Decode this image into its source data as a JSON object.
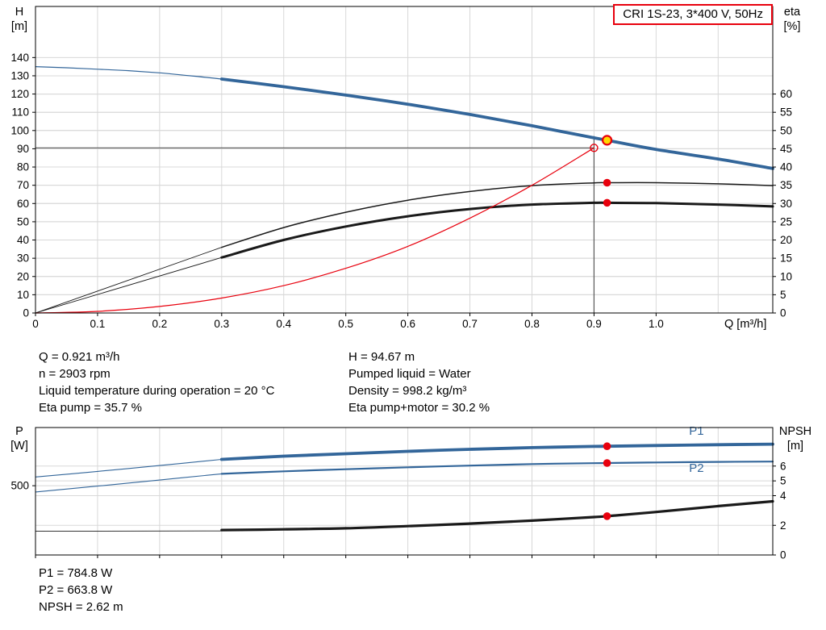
{
  "title_box": {
    "label": "CRI 1S-23, 3*400 V, 50Hz",
    "border_color": "#e8000d"
  },
  "operating_point_info": {
    "left": [
      "Q = 0.921 m³/h",
      "n = 2903 rpm",
      "Liquid temperature during operation = 20 °C",
      "Eta pump = 35.7 %"
    ],
    "right": [
      "H = 94.67 m",
      "Pumped liquid = Water",
      "Density = 998.2 kg/m³",
      "Eta pump+motor = 30.2 %"
    ]
  },
  "power_info": [
    "P1 = 784.8 W",
    "P2 = 663.8 W",
    "NPSH = 2.62 m"
  ],
  "colors": {
    "curve_blue": "#33669a",
    "curve_black": "#1a1a1a",
    "curve_red": "#e8000d",
    "marker_red": "#e8000d",
    "marker_yellow": "#ffd800",
    "grid": "#d8d8d8",
    "crosshair": "#595959"
  },
  "chart_data": [
    {
      "type": "line",
      "name": "hq-eta-chart",
      "title": "CRI 1S-23, 3*400 V, 50Hz",
      "left_axis": {
        "label": "H",
        "unit": "[m]",
        "min": 0,
        "max": 168,
        "tick_values": [
          0,
          10,
          20,
          30,
          40,
          50,
          60,
          70,
          80,
          90,
          100,
          110,
          120,
          130,
          140
        ],
        "tick_labels": [
          "0",
          "10",
          "20",
          "30",
          "40",
          "50",
          "60",
          "70",
          "80",
          "90",
          "100",
          "110",
          "120",
          "130",
          "140"
        ]
      },
      "right_axis": {
        "label": "eta",
        "unit": "[%]",
        "min": 0,
        "max": 84,
        "tick_values": [
          0,
          5,
          10,
          15,
          20,
          25,
          30,
          35,
          40,
          45,
          50,
          55,
          60
        ],
        "tick_labels": [
          "0",
          "5",
          "10",
          "15",
          "20",
          "25",
          "30",
          "35",
          "40",
          "45",
          "50",
          "55",
          "60"
        ]
      },
      "x_axis": {
        "label": "Q [m³/h]",
        "min": 0,
        "max": 1.188,
        "grid_step": 0.1,
        "tick_values": [
          0,
          0.1,
          0.2,
          0.3,
          0.4,
          0.5,
          0.6,
          0.7,
          0.8,
          0.9,
          1.0
        ],
        "tick_labels": [
          "0",
          "0.1",
          "0.2",
          "0.3",
          "0.4",
          "0.5",
          "0.6",
          "0.7",
          "0.8",
          "0.9",
          "1.0"
        ]
      },
      "crosshair": {
        "q": 0.9,
        "h": 90.5,
        "h_top": 97
      },
      "series": [
        {
          "name": "pump-curve-lead",
          "axis": "left",
          "color": "#33669a",
          "width": 1.2,
          "points": [
            [
              0,
              135
            ],
            [
              0.05,
              134.4
            ],
            [
              0.1,
              133.6
            ],
            [
              0.15,
              132.8
            ],
            [
              0.2,
              131.6
            ],
            [
              0.25,
              130
            ],
            [
              0.3,
              128.2
            ]
          ]
        },
        {
          "name": "pump-curve",
          "axis": "left",
          "color": "#33669a",
          "width": 3.8,
          "points": [
            [
              0.3,
              128.2
            ],
            [
              0.4,
              124
            ],
            [
              0.5,
              119.4
            ],
            [
              0.6,
              114.4
            ],
            [
              0.7,
              108.8
            ],
            [
              0.8,
              102.6
            ],
            [
              0.9,
              96
            ],
            [
              0.921,
              94.67
            ],
            [
              1.0,
              89.6
            ],
            [
              1.1,
              84.4
            ],
            [
              1.188,
              79.2
            ]
          ]
        },
        {
          "name": "eta-pump-lead",
          "axis": "right",
          "color": "#1a1a1a",
          "width": 0.9,
          "points": [
            [
              0,
              0
            ],
            [
              0.3,
              18
            ]
          ]
        },
        {
          "name": "eta-pump-curve",
          "axis": "right",
          "color": "#1a1a1a",
          "width": 1.5,
          "points": [
            [
              0.3,
              18
            ],
            [
              0.4,
              23.4
            ],
            [
              0.5,
              27.6
            ],
            [
              0.6,
              30.9
            ],
            [
              0.7,
              33.3
            ],
            [
              0.8,
              34.9
            ],
            [
              0.9,
              35.65
            ],
            [
              0.921,
              35.7
            ],
            [
              1.0,
              35.7
            ],
            [
              1.1,
              35.4
            ],
            [
              1.188,
              34.9
            ]
          ]
        },
        {
          "name": "eta-pump-motor-lead",
          "axis": "right",
          "color": "#1a1a1a",
          "width": 0.9,
          "points": [
            [
              0,
              0
            ],
            [
              0.3,
              15.2
            ]
          ]
        },
        {
          "name": "eta-pump-motor-curve",
          "axis": "right",
          "color": "#1a1a1a",
          "width": 3,
          "points": [
            [
              0.3,
              15.2
            ],
            [
              0.4,
              20
            ],
            [
              0.5,
              23.7
            ],
            [
              0.6,
              26.5
            ],
            [
              0.7,
              28.5
            ],
            [
              0.8,
              29.7
            ],
            [
              0.9,
              30.2
            ],
            [
              0.921,
              30.2
            ],
            [
              1.0,
              30.1
            ],
            [
              1.1,
              29.7
            ],
            [
              1.188,
              29.2
            ]
          ]
        },
        {
          "name": "system-curve",
          "axis": "left",
          "color": "#e8000d",
          "width": 1.2,
          "points": [
            [
              0,
              0
            ],
            [
              0.1,
              0.9
            ],
            [
              0.2,
              3.6
            ],
            [
              0.3,
              8.2
            ],
            [
              0.4,
              15
            ],
            [
              0.5,
              24.5
            ],
            [
              0.6,
              36.5
            ],
            [
              0.7,
              52
            ],
            [
              0.8,
              70
            ],
            [
              0.9,
              90.5
            ]
          ]
        }
      ],
      "markers": [
        {
          "name": "requested-duty-point",
          "type": "open",
          "q": 0.9,
          "v": 90.5,
          "axis": "left",
          "color": "#e8000d"
        },
        {
          "name": "operating-point",
          "type": "target",
          "q": 0.921,
          "v": 94.67,
          "axis": "left",
          "fill": "#ffd800",
          "stroke": "#e8000d"
        },
        {
          "name": "eta-pump-point",
          "type": "dot",
          "q": 0.921,
          "v": 35.7,
          "axis": "right",
          "color": "#e8000d"
        },
        {
          "name": "eta-pump-motor-point",
          "type": "dot",
          "q": 0.921,
          "v": 30.2,
          "axis": "right",
          "color": "#e8000d"
        }
      ],
      "annotations": []
    },
    {
      "type": "line",
      "name": "p-npsh-chart",
      "title": "",
      "left_axis": {
        "label": "P",
        "unit": "[W]",
        "min": 0,
        "max": 920,
        "tick_values": [
          500
        ],
        "tick_labels": [
          "500"
        ]
      },
      "right_axis": {
        "label": "NPSH",
        "unit": "[m]",
        "min": 0,
        "max": 8.6,
        "tick_values": [
          0,
          2,
          4,
          5,
          6
        ],
        "tick_labels": [
          "0",
          "2",
          "4",
          "5",
          "6"
        ]
      },
      "x_axis": {
        "label": "",
        "min": 0,
        "max": 1.188,
        "grid_step": 0.1,
        "tick_values": [
          0,
          0.1,
          0.2,
          0.3,
          0.4,
          0.5,
          0.6,
          0.7,
          0.8,
          0.9,
          1.0
        ],
        "tick_labels": []
      },
      "crosshair": null,
      "series": [
        {
          "name": "p1-lead",
          "axis": "left",
          "color": "#33669a",
          "width": 1.1,
          "points": [
            [
              0,
              563
            ],
            [
              0.1,
              603
            ],
            [
              0.2,
              646
            ],
            [
              0.3,
              690
            ]
          ]
        },
        {
          "name": "p1-curve",
          "axis": "left",
          "color": "#33669a",
          "width": 3.8,
          "points": [
            [
              0.3,
              690
            ],
            [
              0.4,
              713
            ],
            [
              0.5,
              731
            ],
            [
              0.6,
              748
            ],
            [
              0.7,
              763
            ],
            [
              0.8,
              775
            ],
            [
              0.9,
              783.5
            ],
            [
              0.921,
              784.8
            ],
            [
              1.0,
              790
            ],
            [
              1.1,
              796
            ],
            [
              1.188,
              800
            ]
          ]
        },
        {
          "name": "p2-lead",
          "axis": "left",
          "color": "#33669a",
          "width": 1.1,
          "points": [
            [
              0,
              455
            ],
            [
              0.1,
              497
            ],
            [
              0.2,
              541
            ],
            [
              0.3,
              586
            ]
          ]
        },
        {
          "name": "p2-curve",
          "axis": "left",
          "color": "#33669a",
          "width": 2.2,
          "points": [
            [
              0.3,
              586
            ],
            [
              0.4,
              604
            ],
            [
              0.5,
              619
            ],
            [
              0.6,
              633
            ],
            [
              0.7,
              645
            ],
            [
              0.8,
              656
            ],
            [
              0.9,
              662.5
            ],
            [
              0.921,
              663.8
            ],
            [
              1.0,
              668
            ],
            [
              1.1,
              672
            ],
            [
              1.188,
              674
            ]
          ]
        },
        {
          "name": "npsh-lead",
          "axis": "right",
          "color": "#1a1a1a",
          "width": 0.9,
          "points": [
            [
              0,
              1.6
            ],
            [
              0.3,
              1.62
            ]
          ]
        },
        {
          "name": "npsh-curve",
          "axis": "right",
          "color": "#1a1a1a",
          "width": 3.2,
          "points": [
            [
              0.3,
              1.68
            ],
            [
              0.4,
              1.73
            ],
            [
              0.5,
              1.8
            ],
            [
              0.6,
              1.95
            ],
            [
              0.7,
              2.12
            ],
            [
              0.8,
              2.32
            ],
            [
              0.9,
              2.56
            ],
            [
              0.921,
              2.62
            ],
            [
              1.0,
              2.9
            ],
            [
              1.1,
              3.3
            ],
            [
              1.188,
              3.62
            ]
          ]
        }
      ],
      "markers": [
        {
          "name": "p1-point",
          "type": "dot",
          "q": 0.921,
          "v": 784.8,
          "axis": "left",
          "color": "#e8000d"
        },
        {
          "name": "p2-point",
          "type": "dot",
          "q": 0.921,
          "v": 663.8,
          "axis": "left",
          "color": "#e8000d"
        },
        {
          "name": "npsh-point",
          "type": "dot",
          "q": 0.921,
          "v": 2.62,
          "axis": "right",
          "color": "#e8000d"
        }
      ],
      "annotations": [
        {
          "text": "P1",
          "q": 1.065,
          "v": 868,
          "axis": "left",
          "color": "#33669a"
        },
        {
          "text": "P2",
          "q": 1.065,
          "v": 600,
          "axis": "left",
          "color": "#33669a"
        }
      ]
    }
  ]
}
